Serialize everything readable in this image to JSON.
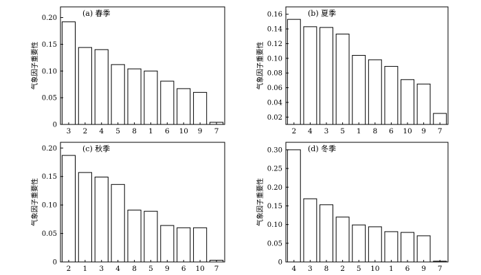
{
  "chart_data": [
    {
      "type": "bar",
      "title": "(a) 春季",
      "ylabel": "气象因子重要性",
      "categories": [
        "3",
        "2",
        "4",
        "5",
        "8",
        "1",
        "6",
        "10",
        "9",
        "7"
      ],
      "values": [
        0.192,
        0.144,
        0.14,
        0.112,
        0.104,
        0.1,
        0.081,
        0.067,
        0.06,
        0.004
      ],
      "ylim": [
        0,
        0.22
      ],
      "yticks": [
        0,
        0.05,
        0.1,
        0.15,
        0.2
      ],
      "ytick_labels": [
        "0",
        "0.05",
        "0.10",
        "0.15",
        "0.20"
      ],
      "grid": false
    },
    {
      "type": "bar",
      "title": "(b) 夏季",
      "ylabel": "气象因子重要性",
      "categories": [
        "2",
        "4",
        "3",
        "5",
        "1",
        "8",
        "6",
        "10",
        "9",
        "7"
      ],
      "values": [
        0.153,
        0.143,
        0.142,
        0.133,
        0.104,
        0.098,
        0.089,
        0.071,
        0.065,
        0.025
      ],
      "ylim": [
        0.01,
        0.17
      ],
      "yticks": [
        0.02,
        0.04,
        0.06,
        0.08,
        0.1,
        0.12,
        0.14,
        0.16
      ],
      "ytick_labels": [
        "0.02",
        "0.04",
        "0.06",
        "0.08",
        "0.10",
        "0.12",
        "0.14",
        "0.16"
      ],
      "grid": false
    },
    {
      "type": "bar",
      "title": "(c) 秋季",
      "ylabel": "气象因子重要性",
      "categories": [
        "2",
        "1",
        "3",
        "4",
        "8",
        "5",
        "9",
        "6",
        "10",
        "7"
      ],
      "values": [
        0.187,
        0.157,
        0.149,
        0.136,
        0.091,
        0.089,
        0.064,
        0.06,
        0.06,
        0.003
      ],
      "ylim": [
        0,
        0.21
      ],
      "yticks": [
        0,
        0.05,
        0.1,
        0.15,
        0.2
      ],
      "ytick_labels": [
        "0",
        "0.05",
        "0.10",
        "0.15",
        "0.20"
      ],
      "grid": false
    },
    {
      "type": "bar",
      "title": "(d) 冬季",
      "ylabel": "气象因子重要性",
      "categories": [
        "4",
        "3",
        "8",
        "2",
        "5",
        "10",
        "1",
        "6",
        "9",
        "7"
      ],
      "values": [
        0.3,
        0.169,
        0.153,
        0.12,
        0.099,
        0.094,
        0.081,
        0.079,
        0.07,
        0.002
      ],
      "ylim": [
        0,
        0.32
      ],
      "yticks": [
        0,
        0.05,
        0.1,
        0.15,
        0.2,
        0.25,
        0.3
      ],
      "ytick_labels": [
        "0",
        "0.05",
        "0.10",
        "0.15",
        "0.20",
        "0.25",
        "0.30"
      ],
      "grid": false
    }
  ]
}
